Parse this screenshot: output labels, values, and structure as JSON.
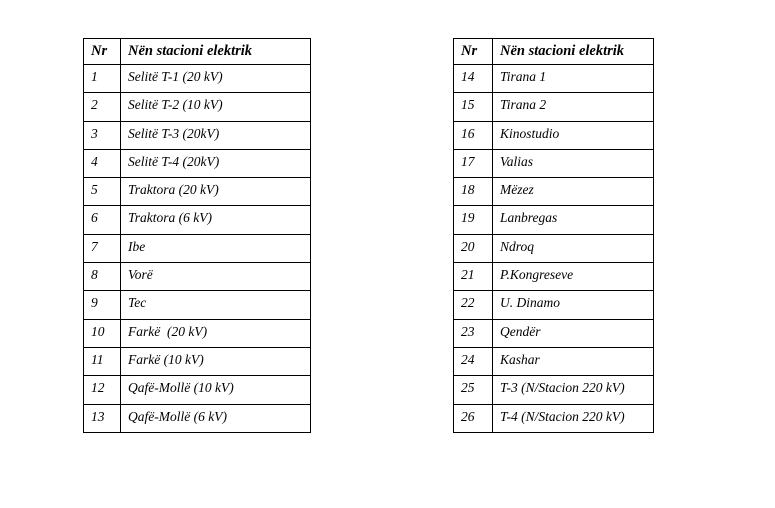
{
  "page": {
    "background_color": "#ffffff",
    "table_border_color": "#000000",
    "text_color": "#000000"
  },
  "tables": [
    {
      "id": "substations-1-13",
      "headers": [
        "Nr",
        "Nën stacioni elektrik"
      ],
      "rows": [
        {
          "nr": "1",
          "station": "Selitë T-1 (20 kV)"
        },
        {
          "nr": "2",
          "station": "Selitë T-2 (10 kV)"
        },
        {
          "nr": "3",
          "station": "Selitë T-3 (20kV)"
        },
        {
          "nr": "4",
          "station": "Selitë T-4 (20kV)"
        },
        {
          "nr": "5",
          "station": "Traktora (20 kV)"
        },
        {
          "nr": "6",
          "station": "Traktora (6 kV)"
        },
        {
          "nr": "7",
          "station": "Ibe"
        },
        {
          "nr": "8",
          "station": "Vorë"
        },
        {
          "nr": "9",
          "station": "Tec"
        },
        {
          "nr": "10",
          "station": "Farkë  (20 kV)"
        },
        {
          "nr": "11",
          "station": "Farkë (10 kV)"
        },
        {
          "nr": "12",
          "station": "Qafë-Mollë (10 kV)"
        },
        {
          "nr": "13",
          "station": "Qafë-Mollë (6 kV)"
        }
      ]
    },
    {
      "id": "substations-14-26",
      "headers": [
        "Nr",
        "Nën stacioni elektrik"
      ],
      "rows": [
        {
          "nr": "14",
          "station": "Tirana 1"
        },
        {
          "nr": "15",
          "station": "Tirana 2"
        },
        {
          "nr": "16",
          "station": "Kinostudio"
        },
        {
          "nr": "17",
          "station": "Valias"
        },
        {
          "nr": "18",
          "station": "Mëzez"
        },
        {
          "nr": "19",
          "station": "Lanbregas"
        },
        {
          "nr": "20",
          "station": "Ndroq"
        },
        {
          "nr": "21",
          "station": "P.Kongreseve"
        },
        {
          "nr": "22",
          "station": "U. Dinamo"
        },
        {
          "nr": "23",
          "station": "Qendër"
        },
        {
          "nr": "24",
          "station": "Kashar"
        },
        {
          "nr": "25",
          "station": "T-3 (N/Stacion 220 kV)"
        },
        {
          "nr": "26",
          "station": "T-4 (N/Stacion 220 kV)"
        }
      ]
    }
  ]
}
